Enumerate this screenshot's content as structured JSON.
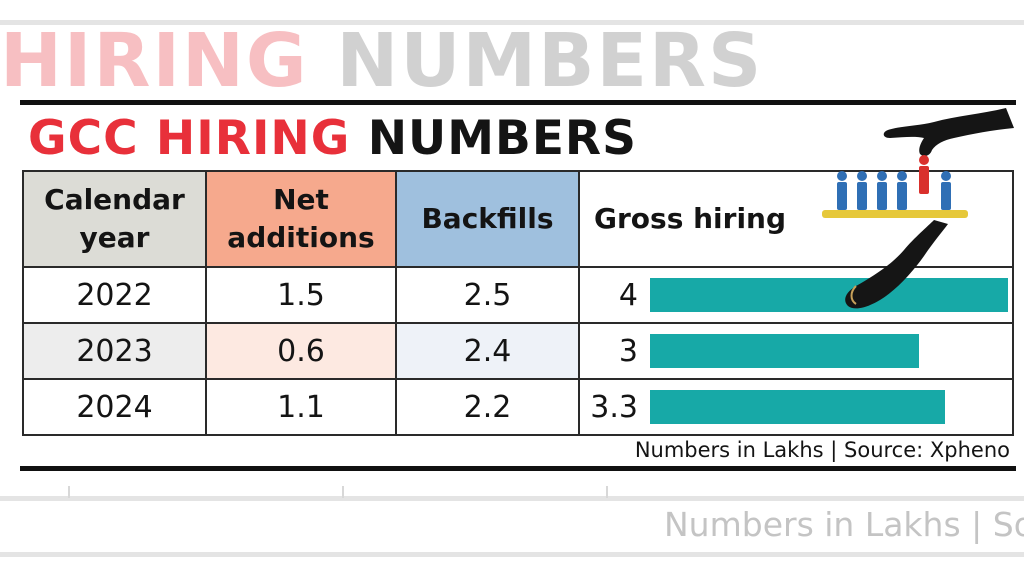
{
  "ghost": {
    "title_red": "HIRING",
    "title_dark": "NUMBERS",
    "source": "Numbers in Lakhs | Sou"
  },
  "title": {
    "red": "GCC HIRING",
    "dark": "NUMBERS"
  },
  "headers": {
    "year": [
      "Calendar",
      "year"
    ],
    "net": [
      "Net",
      "additions"
    ],
    "back": "Backfills",
    "gross": "Gross hiring"
  },
  "source": "Numbers in Lakhs | Source: Xpheno",
  "colors": {
    "title_red": "#e8303a",
    "bar": "#17a9a7",
    "net_header": "#f6a98d",
    "backfills_header": "#9fc0de",
    "year_header": "#dcdcd6"
  },
  "chart_data": {
    "type": "table",
    "title": "GCC HIRING NUMBERS",
    "columns": [
      "Calendar year",
      "Net additions",
      "Backfills",
      "Gross hiring"
    ],
    "rows": [
      {
        "year": "2022",
        "net": "1.5",
        "backfills": "2.5",
        "gross": "4"
      },
      {
        "year": "2023",
        "net": "0.6",
        "backfills": "2.4",
        "gross": "3"
      },
      {
        "year": "2024",
        "net": "1.1",
        "backfills": "2.2",
        "gross": "3.3"
      }
    ],
    "gross_values": [
      4,
      3,
      3.3
    ],
    "bar_max": 4,
    "units": "Numbers in Lakhs",
    "source": "Xpheno"
  }
}
